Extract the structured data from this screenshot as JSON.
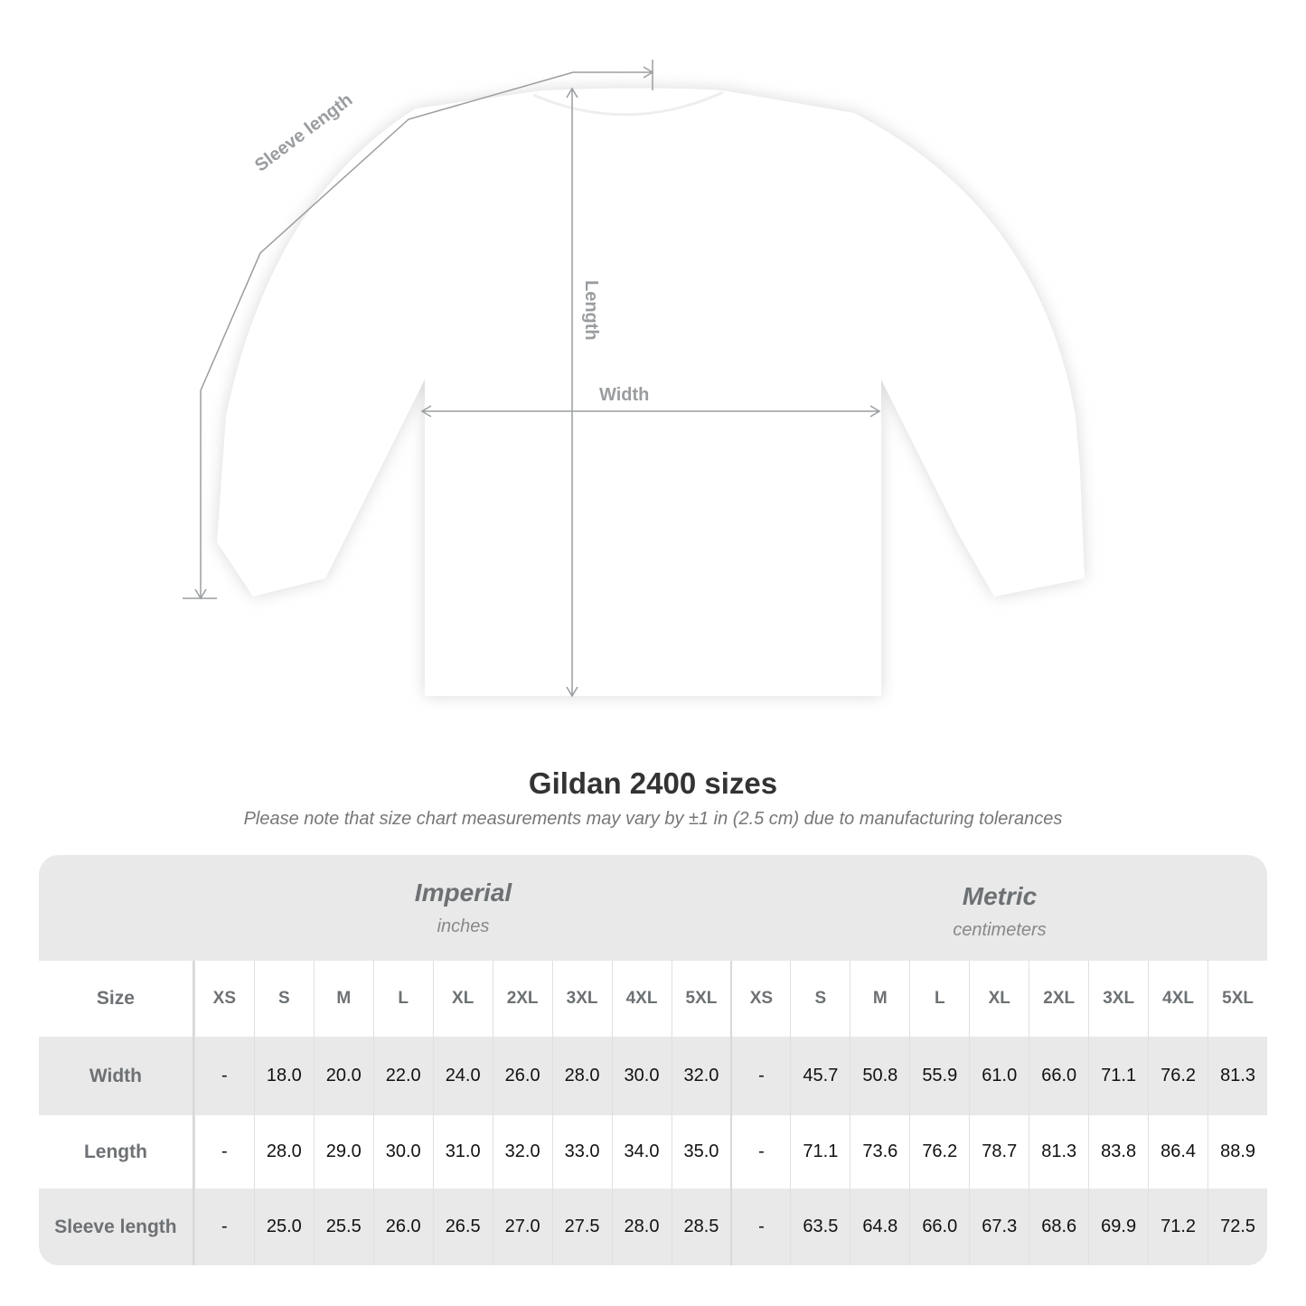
{
  "diagram": {
    "sleeve_label": "Sleeve length",
    "length_label": "Length",
    "width_label": "Width"
  },
  "title": "Gildan 2400 sizes",
  "note": "Please note that size chart measurements may vary by ±1 in (2.5 cm) due to manufacturing tolerances",
  "imperial": {
    "name": "Imperial",
    "unit": "inches"
  },
  "metric": {
    "name": "Metric",
    "unit": "centimeters"
  },
  "size_header": "Size",
  "sizes": [
    "XS",
    "S",
    "M",
    "L",
    "XL",
    "2XL",
    "3XL",
    "4XL",
    "5XL"
  ],
  "rows": [
    {
      "label": "Width",
      "imperial": [
        "-",
        "18.0",
        "20.0",
        "22.0",
        "24.0",
        "26.0",
        "28.0",
        "30.0",
        "32.0"
      ],
      "metric": [
        "-",
        "45.7",
        "50.8",
        "55.9",
        "61.0",
        "66.0",
        "71.1",
        "76.2",
        "81.3"
      ]
    },
    {
      "label": "Length",
      "imperial": [
        "-",
        "28.0",
        "29.0",
        "30.0",
        "31.0",
        "32.0",
        "33.0",
        "34.0",
        "35.0"
      ],
      "metric": [
        "-",
        "71.1",
        "73.6",
        "76.2",
        "78.7",
        "81.3",
        "83.8",
        "86.4",
        "88.9"
      ]
    },
    {
      "label": "Sleeve length",
      "imperial": [
        "-",
        "25.0",
        "25.5",
        "26.0",
        "26.5",
        "27.0",
        "27.5",
        "28.0",
        "28.5"
      ],
      "metric": [
        "-",
        "63.5",
        "64.8",
        "66.0",
        "67.3",
        "68.6",
        "69.9",
        "71.2",
        "72.5"
      ]
    }
  ],
  "colors": {
    "band": "#e9e9e9",
    "label": "#6d7174",
    "measure_line": "#9a9d9f"
  }
}
